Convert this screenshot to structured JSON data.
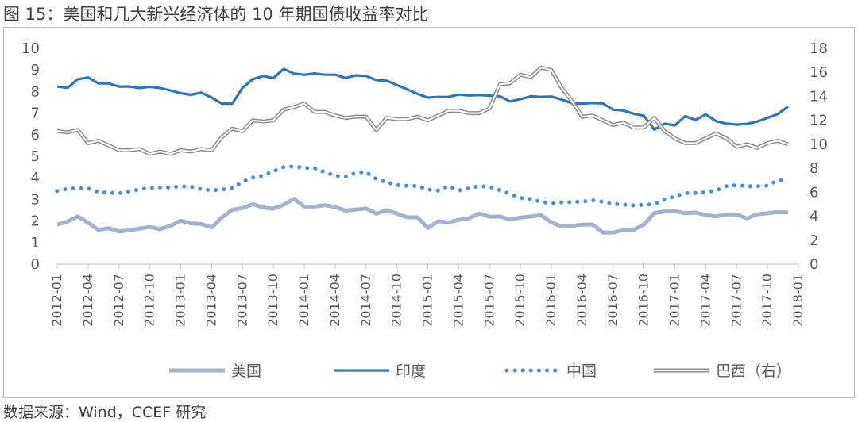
{
  "title": "图 15：美国和几大新兴经济体的 10 年期国债收益率对比",
  "source": "数据来源：Wind，CCEF 研究",
  "chart_data": {
    "type": "line",
    "title": "图 15：美国和几大新兴经济体的 10 年期国债收益率对比",
    "xlabel": "",
    "ylabel": "",
    "ylim": [
      0,
      10
    ],
    "y2lim": [
      0,
      18
    ],
    "yticks": [
      "0",
      "1",
      "2",
      "3",
      "4",
      "5",
      "6",
      "7",
      "8",
      "9",
      "10"
    ],
    "y2ticks": [
      "0",
      "2",
      "4",
      "6",
      "8",
      "10",
      "12",
      "14",
      "16",
      "18"
    ],
    "x_tick_labels": [
      "2012-01",
      "2012-04",
      "2012-07",
      "2012-10",
      "2013-01",
      "2013-04",
      "2013-07",
      "2013-10",
      "2014-01",
      "2014-04",
      "2014-07",
      "2014-10",
      "2015-01",
      "2015-04",
      "2015-07",
      "2015-10",
      "2016-01",
      "2016-04",
      "2016-07",
      "2016-10",
      "2017-01",
      "2017-04",
      "2017-07",
      "2017-10",
      "2018-01"
    ],
    "grid": false,
    "legend_position": "bottom",
    "series": [
      {
        "name": "美国",
        "axis": "left",
        "color": "#a5b2cc",
        "style": "solid-thick",
        "values": [
          1.83,
          1.97,
          2.21,
          1.92,
          1.59,
          1.67,
          1.51,
          1.57,
          1.65,
          1.72,
          1.62,
          1.78,
          2.01,
          1.89,
          1.86,
          1.7,
          2.16,
          2.52,
          2.6,
          2.78,
          2.63,
          2.57,
          2.75,
          3.03,
          2.67,
          2.67,
          2.73,
          2.65,
          2.48,
          2.53,
          2.58,
          2.34,
          2.5,
          2.35,
          2.17,
          2.17,
          1.68,
          1.99,
          1.93,
          2.05,
          2.12,
          2.35,
          2.2,
          2.21,
          2.06,
          2.16,
          2.21,
          2.27,
          1.94,
          1.74,
          1.78,
          1.83,
          1.84,
          1.47,
          1.46,
          1.58,
          1.6,
          1.83,
          2.37,
          2.44,
          2.45,
          2.36,
          2.39,
          2.28,
          2.21,
          2.31,
          2.3,
          2.12,
          2.31,
          2.36,
          2.41,
          2.4
        ]
      },
      {
        "name": "印度",
        "axis": "left",
        "color": "#2e75b6",
        "style": "solid",
        "values": [
          8.23,
          8.17,
          8.57,
          8.65,
          8.38,
          8.38,
          8.23,
          8.23,
          8.16,
          8.22,
          8.16,
          8.05,
          7.92,
          7.85,
          7.95,
          7.72,
          7.44,
          7.44,
          8.17,
          8.57,
          8.72,
          8.62,
          9.05,
          8.83,
          8.78,
          8.84,
          8.78,
          8.78,
          8.63,
          8.75,
          8.72,
          8.53,
          8.5,
          8.3,
          8.1,
          7.89,
          7.72,
          7.75,
          7.75,
          7.86,
          7.82,
          7.84,
          7.81,
          7.78,
          7.54,
          7.65,
          7.78,
          7.75,
          7.77,
          7.63,
          7.46,
          7.44,
          7.47,
          7.45,
          7.16,
          7.12,
          6.97,
          6.88,
          6.24,
          6.51,
          6.43,
          6.86,
          6.68,
          6.94,
          6.63,
          6.51,
          6.47,
          6.5,
          6.61,
          6.78,
          6.96,
          7.3
        ]
      },
      {
        "name": "中国",
        "axis": "left",
        "color": "#4e8fcb",
        "style": "dotted",
        "values": [
          3.39,
          3.5,
          3.52,
          3.51,
          3.34,
          3.31,
          3.29,
          3.36,
          3.47,
          3.54,
          3.55,
          3.55,
          3.61,
          3.59,
          3.47,
          3.42,
          3.46,
          3.52,
          3.82,
          4.01,
          4.1,
          4.31,
          4.5,
          4.53,
          4.46,
          4.45,
          4.26,
          4.1,
          4.05,
          4.23,
          4.27,
          3.95,
          3.79,
          3.67,
          3.63,
          3.62,
          3.46,
          3.41,
          3.62,
          3.42,
          3.51,
          3.62,
          3.58,
          3.43,
          3.25,
          3.07,
          3.02,
          2.89,
          2.82,
          2.86,
          2.87,
          2.9,
          2.96,
          2.89,
          2.79,
          2.76,
          2.72,
          2.75,
          2.78,
          3.0,
          3.14,
          3.29,
          3.3,
          3.33,
          3.41,
          3.61,
          3.66,
          3.61,
          3.61,
          3.64,
          3.88,
          3.9
        ]
      },
      {
        "name": "巴西（右）",
        "axis": "right",
        "color": "#8c8c8c",
        "style": "double",
        "values": [
          11.1,
          11.0,
          11.2,
          10.1,
          10.3,
          9.9,
          9.5,
          9.5,
          9.6,
          9.2,
          9.4,
          9.2,
          9.5,
          9.4,
          9.6,
          9.5,
          10.6,
          11.3,
          11.1,
          12.0,
          11.9,
          12.0,
          12.9,
          13.1,
          13.4,
          12.7,
          12.7,
          12.4,
          12.2,
          12.3,
          12.3,
          11.2,
          12.2,
          12.1,
          12.1,
          12.3,
          12.0,
          12.4,
          12.8,
          12.8,
          12.6,
          12.6,
          13.0,
          15.0,
          15.1,
          15.8,
          15.6,
          16.4,
          16.2,
          14.7,
          13.6,
          12.3,
          12.4,
          12.0,
          11.6,
          11.8,
          11.4,
          11.4,
          12.2,
          11.1,
          10.5,
          10.1,
          10.1,
          10.5,
          10.9,
          10.5,
          9.8,
          10.0,
          9.7,
          10.1,
          10.3,
          10.0
        ]
      }
    ]
  }
}
